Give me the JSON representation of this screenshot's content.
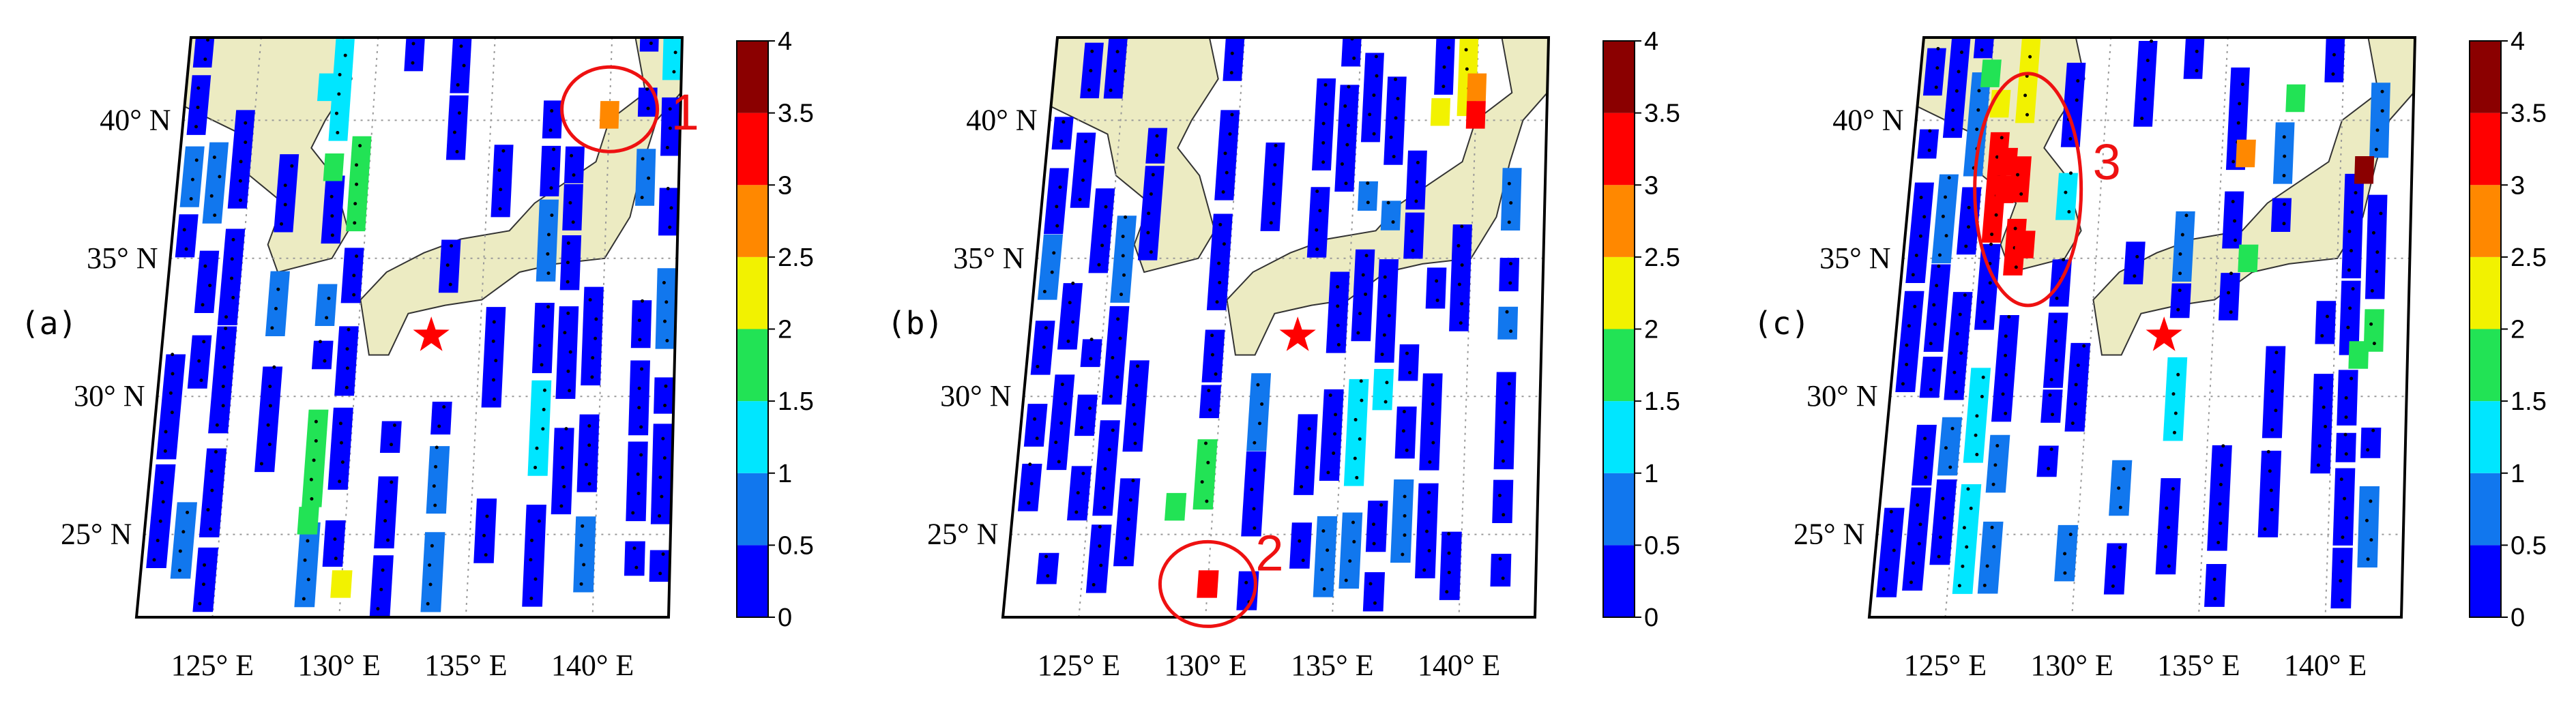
{
  "colors": {
    "land": "#ecebc2",
    "marker": "#ff0000",
    "annotation": "#ee1111",
    "colormap": [
      "#0000ff",
      "#1177ee",
      "#00e6ff",
      "#22e355",
      "#f2f200",
      "#ff8800",
      "#ff0000",
      "#8b0000"
    ]
  },
  "colorbar": {
    "min": 0,
    "max": 4,
    "ticks": [
      "0",
      "0.5",
      "1",
      "1.5",
      "2",
      "2.5",
      "3",
      "3.5",
      "4"
    ]
  },
  "axes": {
    "lat_labels": [
      "40° N",
      "35° N",
      "30° N",
      "25° N"
    ],
    "lon_labels": [
      "125° E",
      "130° E",
      "135° E",
      "140° E"
    ]
  },
  "marker": {
    "type": "star",
    "lon": 133,
    "lat": 32.2
  },
  "panels": [
    {
      "label": "(a)",
      "annotation": {
        "text": "1",
        "lon": 140,
        "lat": 40.4
      },
      "highlights": [
        {
          "lon": 140,
          "lat": 40.2,
          "value": 2.8
        },
        {
          "lon": 128.5,
          "lat": 38.3,
          "value": 1.6
        },
        {
          "lon": 128.5,
          "lat": 25.5,
          "value": 1.8
        },
        {
          "lon": 130,
          "lat": 23.2,
          "value": 2.2
        },
        {
          "lon": 128,
          "lat": 41.2,
          "value": 1.3
        }
      ]
    },
    {
      "label": "(b)",
      "annotation": {
        "text": "2",
        "lon": 130,
        "lat": 23.2
      },
      "highlights": [
        {
          "lon": 130,
          "lat": 23.2,
          "value": 3.3
        },
        {
          "lon": 140,
          "lat": 41.2,
          "value": 2.7
        },
        {
          "lon": 140,
          "lat": 40.2,
          "value": 3.2
        },
        {
          "lon": 138.5,
          "lat": 40.3,
          "value": 2.1
        },
        {
          "lon": 128.5,
          "lat": 26,
          "value": 1.8
        }
      ]
    },
    {
      "label": "(c)",
      "annotation": {
        "text": "3",
        "lon": 127,
        "lat": 37
      },
      "highlights": [
        {
          "lon": 126,
          "lat": 38.5,
          "value": 3.2
        },
        {
          "lon": 126,
          "lat": 37.5,
          "value": 3.2
        },
        {
          "lon": 127,
          "lat": 35.5,
          "value": 3.2
        },
        {
          "lon": 141,
          "lat": 38.2,
          "value": 3.9
        },
        {
          "lon": 141,
          "lat": 31.5,
          "value": 1.8
        },
        {
          "lon": 125,
          "lat": 41.7,
          "value": 1.8
        },
        {
          "lon": 125.5,
          "lat": 40.6,
          "value": 2.2
        },
        {
          "lon": 136,
          "lat": 38.8,
          "value": 2.7
        },
        {
          "lon": 136.3,
          "lat": 35,
          "value": 1.7
        },
        {
          "lon": 138,
          "lat": 40.8,
          "value": 1.8
        }
      ]
    }
  ]
}
